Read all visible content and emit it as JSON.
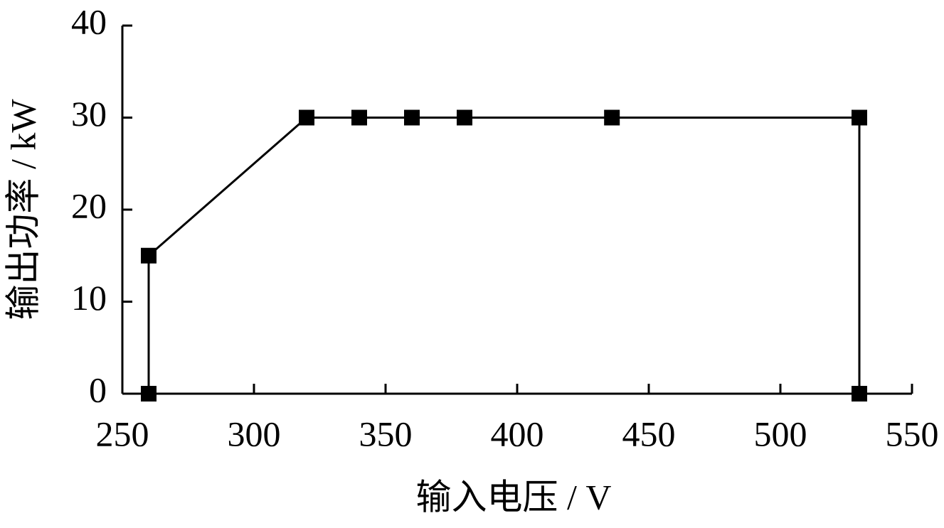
{
  "chart_data": {
    "type": "line",
    "x_label": "输入电压 / V",
    "y_label": "输出功率 / kW",
    "x": [
      260,
      260,
      320,
      340,
      360,
      380,
      436,
      530,
      530
    ],
    "series": [
      {
        "values": [
          0,
          15,
          30,
          30,
          30,
          30,
          30,
          30,
          0
        ],
        "color": "#000000"
      }
    ],
    "marker": "square",
    "xlim": [
      250,
      550
    ],
    "xticks": [
      250,
      300,
      350,
      400,
      450,
      500,
      550
    ],
    "ylim": [
      0,
      40
    ],
    "yticks": [
      0,
      10,
      20,
      30,
      40
    ]
  }
}
